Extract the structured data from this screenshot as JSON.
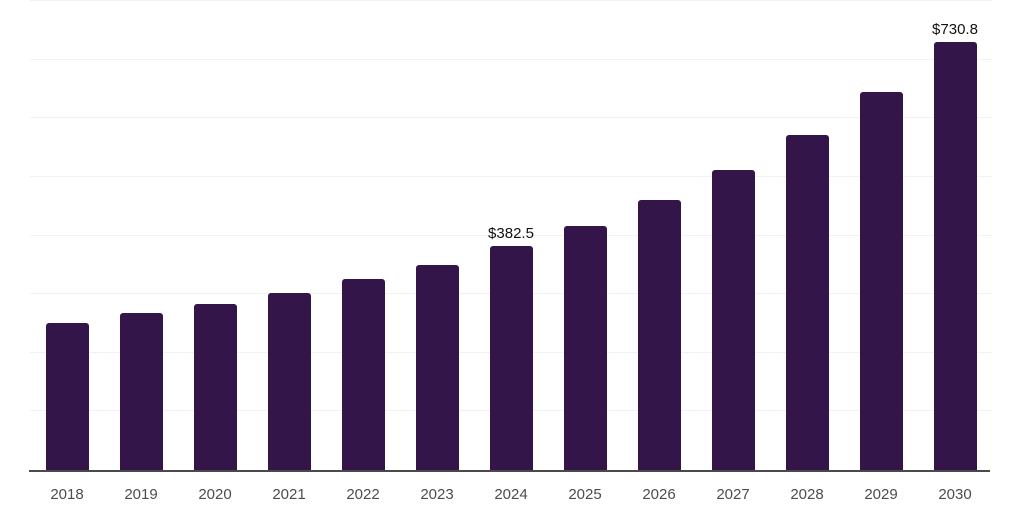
{
  "chart_data": {
    "type": "bar",
    "title": "",
    "xlabel": "",
    "ylabel": "",
    "categories": [
      "2018",
      "2019",
      "2020",
      "2021",
      "2022",
      "2023",
      "2024",
      "2025",
      "2026",
      "2027",
      "2028",
      "2029",
      "2030"
    ],
    "values": [
      251,
      267,
      284,
      302,
      325,
      349,
      382.5,
      417,
      461,
      512,
      571,
      645,
      730.8
    ],
    "bar_labels": [
      "",
      "",
      "",
      "",
      "",
      "",
      "$382.5",
      "",
      "",
      "",
      "",
      "",
      "$730.8"
    ],
    "currency_prefix": "$",
    "ylim": [
      0,
      800
    ],
    "gridline_interval": 100,
    "grid": true,
    "y_tick_labels_visible": false,
    "legend_position": "none",
    "colors": {
      "bar": "#331549",
      "gridline": "#f2f2f2",
      "axis_line": "#4a4a4a",
      "x_label": "#4d4d4d",
      "bar_label": "#111111",
      "background": "#ffffff"
    }
  }
}
